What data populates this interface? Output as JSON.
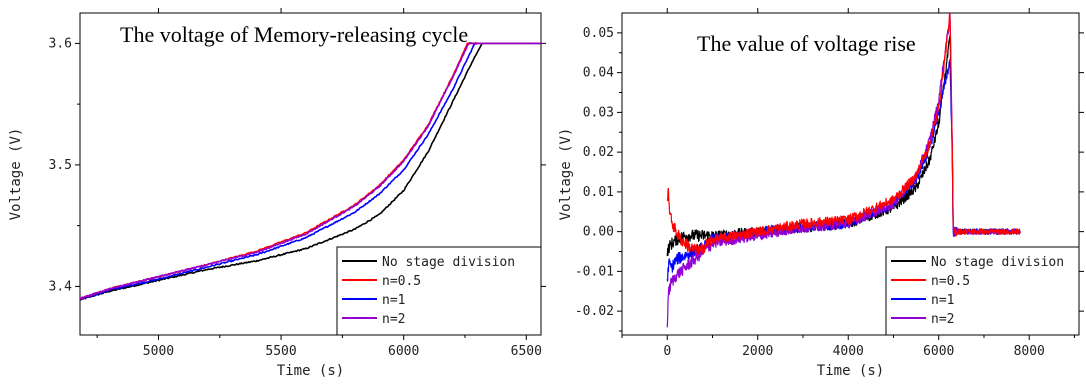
{
  "chart_data": [
    {
      "type": "line",
      "title": "The voltage of Memory-releasing cycle",
      "xlabel": "Time (s)",
      "ylabel": "Voltage (V)",
      "xlim": [
        4680,
        6560
      ],
      "ylim": [
        3.36,
        3.625
      ],
      "x_ticks": [
        5000,
        5500,
        6000,
        6500
      ],
      "y_ticks": [
        3.4,
        3.5,
        3.6
      ],
      "x_tick_labels": [
        "5000",
        "5500",
        "6000",
        "6500"
      ],
      "y_tick_labels": [
        "3.4",
        "3.5",
        "3.6"
      ],
      "legend_position": "bottom-right",
      "series": [
        {
          "name": "No stage division",
          "color": "#000000",
          "x": [
            4680,
            4800,
            5000,
            5200,
            5400,
            5600,
            5800,
            5900,
            6000,
            6100,
            6200,
            6280,
            6320,
            6400,
            6560
          ],
          "y": [
            3.389,
            3.396,
            3.405,
            3.414,
            3.421,
            3.431,
            3.447,
            3.459,
            3.479,
            3.511,
            3.552,
            3.585,
            3.6,
            3.6,
            3.6
          ]
        },
        {
          "name": "n=0.5",
          "color": "#ff0000",
          "x": [
            4680,
            4800,
            5000,
            5200,
            5400,
            5600,
            5800,
            5900,
            6000,
            6100,
            6200,
            6260,
            6400,
            6560
          ],
          "y": [
            3.39,
            3.398,
            3.408,
            3.418,
            3.429,
            3.444,
            3.467,
            3.483,
            3.504,
            3.533,
            3.573,
            3.6,
            3.6,
            3.6
          ]
        },
        {
          "name": "n=1",
          "color": "#0000ff",
          "x": [
            4680,
            4800,
            5000,
            5200,
            5400,
            5600,
            5800,
            5900,
            6000,
            6100,
            6200,
            6290,
            6400,
            6560
          ],
          "y": [
            3.389,
            3.397,
            3.406,
            3.416,
            3.426,
            3.44,
            3.461,
            3.476,
            3.496,
            3.525,
            3.562,
            3.6,
            3.6,
            3.6
          ]
        },
        {
          "name": "n=2",
          "color": "#9400d3",
          "x": [
            4680,
            4800,
            5000,
            5200,
            5400,
            5600,
            5800,
            5900,
            6000,
            6100,
            6200,
            6265,
            6400,
            6560
          ],
          "y": [
            3.39,
            3.398,
            3.408,
            3.418,
            3.428,
            3.443,
            3.466,
            3.482,
            3.503,
            3.532,
            3.572,
            3.6,
            3.6,
            3.6
          ]
        }
      ]
    },
    {
      "type": "line",
      "title": "The value of voltage rise",
      "xlabel": "Time (s)",
      "ylabel": "Voltage (V)",
      "xlim": [
        -1000,
        9100
      ],
      "ylim": [
        -0.026,
        0.055
      ],
      "x_ticks": [
        0,
        2000,
        4000,
        6000,
        8000
      ],
      "y_ticks": [
        -0.02,
        -0.01,
        0.0,
        0.01,
        0.02,
        0.03,
        0.04,
        0.05
      ],
      "x_tick_labels": [
        "0",
        "2000",
        "4000",
        "6000",
        "8000"
      ],
      "y_tick_labels": [
        "-0.02",
        "-0.01",
        "0.00",
        "0.01",
        "0.02",
        "0.03",
        "0.04",
        "0.05"
      ],
      "legend_position": "bottom-right",
      "series": [
        {
          "name": "No stage division",
          "color": "#000000",
          "x": [
            0,
            30,
            100,
            200,
            400,
            600,
            1000,
            2000,
            3000,
            4000,
            5000,
            5500,
            5800,
            6000,
            6150,
            6250,
            6300,
            6320,
            6500,
            7000,
            7800
          ],
          "y": [
            -0.006,
            -0.004,
            -0.003,
            -0.002,
            -0.001,
            -0.001,
            -0.001,
            0.0,
            0.001,
            0.002,
            0.006,
            0.011,
            0.018,
            0.027,
            0.04,
            0.049,
            0.02,
            0.0,
            0.0,
            0.0,
            0.0
          ]
        },
        {
          "name": "n=0.5",
          "color": "#ff0000",
          "x": [
            0,
            30,
            60,
            150,
            300,
            500,
            700,
            1000,
            2000,
            3000,
            4000,
            5000,
            5500,
            5800,
            6000,
            6150,
            6250,
            6300,
            6320,
            6500,
            7000,
            7800
          ],
          "y": [
            0.008,
            0.01,
            0.004,
            0.001,
            -0.002,
            -0.004,
            -0.005,
            -0.002,
            0.0,
            0.002,
            0.003,
            0.008,
            0.014,
            0.022,
            0.031,
            0.045,
            0.055,
            0.02,
            0.0,
            0.0,
            0.0,
            0.0
          ]
        },
        {
          "name": "n=1",
          "color": "#0000ff",
          "x": [
            0,
            30,
            100,
            200,
            400,
            600,
            800,
            1000,
            2000,
            3000,
            4000,
            5000,
            5500,
            5800,
            6000,
            6150,
            6250,
            6300,
            6320,
            6500,
            7000,
            7800
          ],
          "y": [
            -0.013,
            -0.008,
            -0.009,
            -0.007,
            -0.006,
            -0.005,
            -0.004,
            -0.002,
            0.0,
            0.001,
            0.002,
            0.007,
            0.013,
            0.021,
            0.03,
            0.038,
            0.043,
            0.018,
            0.0,
            0.0,
            0.0,
            0.0
          ]
        },
        {
          "name": "n=2",
          "color": "#9400d3",
          "x": [
            0,
            20,
            80,
            200,
            400,
            600,
            800,
            1000,
            2000,
            3000,
            4000,
            5000,
            5500,
            5800,
            6000,
            6150,
            6250,
            6300,
            6320,
            6500,
            7000,
            7800
          ],
          "y": [
            -0.024,
            -0.016,
            -0.013,
            -0.011,
            -0.009,
            -0.007,
            -0.005,
            -0.003,
            -0.001,
            0.001,
            0.002,
            0.007,
            0.014,
            0.023,
            0.033,
            0.046,
            0.054,
            0.02,
            0.0,
            0.0,
            0.0,
            0.0
          ]
        }
      ]
    }
  ]
}
